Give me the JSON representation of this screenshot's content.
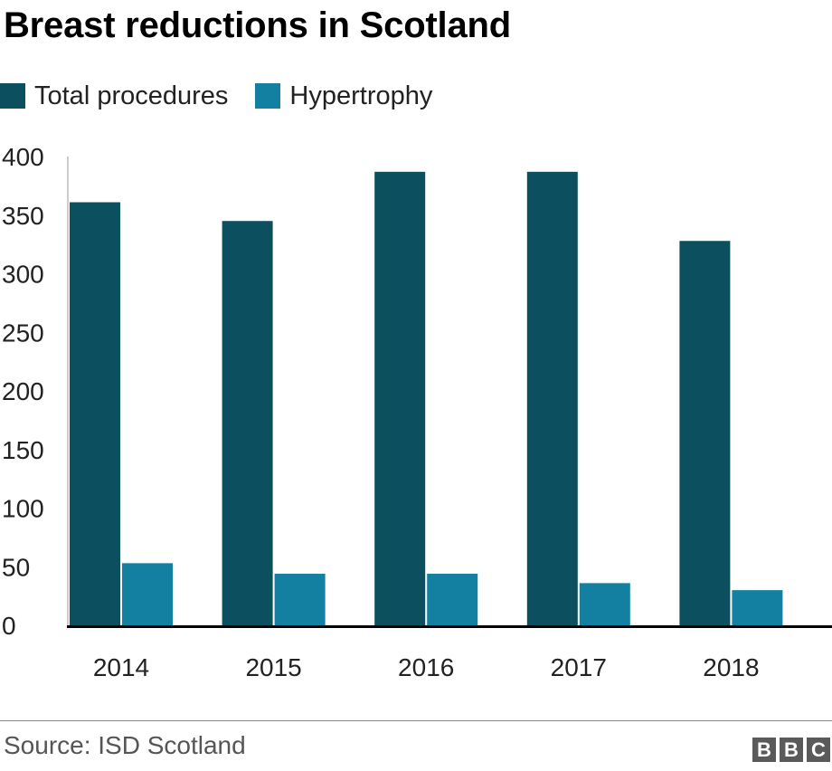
{
  "chart_data": {
    "type": "bar",
    "title": "Breast reductions in Scotland",
    "xlabel": "",
    "ylabel": "",
    "categories": [
      "2014",
      "2015",
      "2016",
      "2017",
      "2018"
    ],
    "series": [
      {
        "name": "Total procedures",
        "color": "#0c4f5e",
        "values": [
          361,
          345,
          387,
          387,
          328
        ]
      },
      {
        "name": "Hypertrophy",
        "color": "#1380a1",
        "values": [
          53,
          44,
          44,
          36,
          30
        ]
      }
    ],
    "ylim": [
      0,
      400
    ],
    "yticks": [
      0,
      50,
      100,
      150,
      200,
      250,
      300,
      350,
      400
    ],
    "grid": false,
    "legend": "top-left"
  },
  "footer": {
    "source": "Source: ISD Scotland",
    "logo_letters": [
      "B",
      "B",
      "C"
    ]
  }
}
